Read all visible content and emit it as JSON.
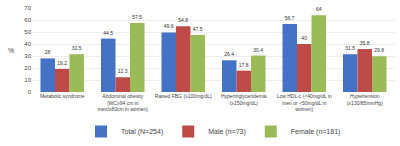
{
  "chart_data": {
    "type": "bar",
    "categories": [
      "Metabolic syndrome",
      "Abdominal obesity\n(WC≥94 cm in\nmen/≥80cm in women)",
      "Raised FBG (≥100mg/dL)",
      "Hypertriglyceridemia\n(≥150mg/dL)",
      "Low HDL-c (<40mg/dL in\nmen or <50mg/dL in\nwomen)",
      "Hypertension\n(≥130/85mmHg)"
    ],
    "series": [
      {
        "name": "Total (N=254)",
        "color": "#4472C4",
        "values": [
          28,
          44.5,
          49.6,
          26.4,
          56.7,
          31.5
        ]
      },
      {
        "name": "Male (n=73)",
        "color": "#BE4B48",
        "values": [
          19.2,
          12.3,
          54.8,
          17.8,
          40,
          35.8
        ]
      },
      {
        "name": "Female (n=181)",
        "color": "#9BBB59",
        "values": [
          31.5,
          57.5,
          47.5,
          30.4,
          64,
          29.8
        ]
      }
    ],
    "ylabel": "%",
    "ylim": [
      0,
      70
    ],
    "yticks": [
      0,
      10,
      20,
      30,
      40,
      50,
      60,
      70
    ],
    "grid": true,
    "data_labels": true,
    "legend": "bottom"
  }
}
